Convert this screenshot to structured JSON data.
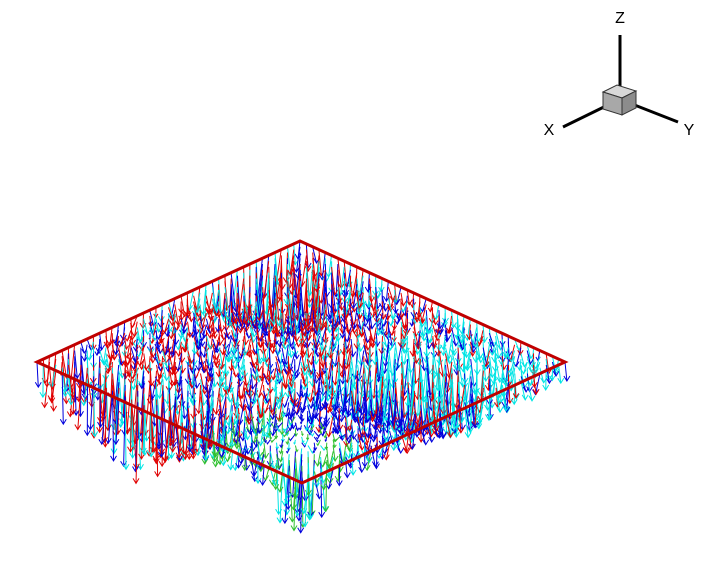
{
  "axis_triad": {
    "z_label": "Z",
    "x_label": "X",
    "y_label": "Y"
  }
}
